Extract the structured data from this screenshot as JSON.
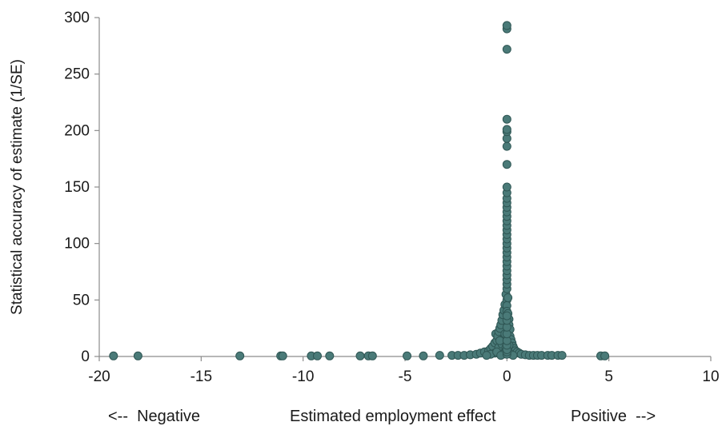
{
  "chart_data": {
    "type": "scatter",
    "title": "",
    "xlabel": "Estimated employment effect",
    "ylabel": "Statistical accuracy of estimate (1/SE)",
    "xlabel_left": "<--  Negative",
    "xlabel_right": "Positive  -->",
    "xlim": [
      -20,
      10
    ],
    "ylim": [
      0,
      300
    ],
    "xticks": [
      -20,
      -15,
      -10,
      -5,
      0,
      5,
      10
    ],
    "yticks": [
      0,
      50,
      100,
      150,
      200,
      250,
      300
    ],
    "xtick_labels": [
      "-20",
      "-15",
      "-10",
      "-5",
      "0",
      "5",
      "10"
    ],
    "ytick_labels": [
      "0",
      "50",
      "100",
      "150",
      "200",
      "250",
      "300"
    ],
    "grid": false,
    "legend": "none",
    "marker_color": "#4a7a78",
    "marker_edge": "#2f5654",
    "points": [
      [
        -19.3,
        0.5
      ],
      [
        -18.1,
        0.5
      ],
      [
        -13.1,
        0.5
      ],
      [
        -11.1,
        0.5
      ],
      [
        -11.0,
        0.5
      ],
      [
        -9.6,
        0.5
      ],
      [
        -9.3,
        0.5
      ],
      [
        -8.7,
        0.5
      ],
      [
        -7.2,
        0.5
      ],
      [
        -6.8,
        0.5
      ],
      [
        -6.6,
        0.5
      ],
      [
        -4.9,
        0.5
      ],
      [
        -4.1,
        0.5
      ],
      [
        -3.3,
        1.0
      ],
      [
        -2.7,
        1.0
      ],
      [
        -2.4,
        1.0
      ],
      [
        -2.1,
        1.0
      ],
      [
        -1.8,
        1.5
      ],
      [
        -1.5,
        2.0
      ],
      [
        -1.3,
        3.0
      ],
      [
        -1.1,
        4.0
      ],
      [
        -0.9,
        5.0
      ],
      [
        -0.8,
        7.0
      ],
      [
        -0.7,
        9.0
      ],
      [
        -0.6,
        12.0
      ],
      [
        -0.55,
        20.0
      ],
      [
        -0.5,
        14.0
      ],
      [
        -0.45,
        18.0
      ],
      [
        -0.4,
        22.0
      ],
      [
        -0.35,
        25.0
      ],
      [
        -0.3,
        28.0
      ],
      [
        -0.25,
        32.0
      ],
      [
        -0.2,
        37.0
      ],
      [
        -0.15,
        41.0
      ],
      [
        -0.1,
        46.0
      ],
      [
        -0.05,
        55.0
      ],
      [
        -0.3,
        6.0
      ],
      [
        -0.6,
        3.0
      ],
      [
        -0.2,
        15.0
      ],
      [
        -0.4,
        8.0
      ],
      [
        -0.1,
        20.0
      ],
      [
        -0.8,
        2.0
      ],
      [
        -1.0,
        1.0
      ],
      [
        -0.5,
        4.0
      ],
      [
        -0.25,
        11.0
      ],
      [
        0.0,
        60.0
      ],
      [
        0.0,
        64.0
      ],
      [
        0.0,
        68.0
      ],
      [
        0.0,
        72.0
      ],
      [
        0.0,
        76.0
      ],
      [
        0.0,
        80.0
      ],
      [
        0.0,
        84.0
      ],
      [
        0.0,
        88.0
      ],
      [
        0.0,
        92.0
      ],
      [
        0.0,
        96.0
      ],
      [
        0.0,
        100.0
      ],
      [
        0.0,
        104.0
      ],
      [
        0.0,
        108.0
      ],
      [
        0.0,
        112.0
      ],
      [
        0.0,
        116.0
      ],
      [
        0.0,
        120.0
      ],
      [
        0.0,
        124.0
      ],
      [
        0.0,
        128.0
      ],
      [
        0.0,
        132.0
      ],
      [
        0.0,
        136.0
      ],
      [
        0.0,
        140.0
      ],
      [
        0.0,
        145.0
      ],
      [
        0.0,
        150.0
      ],
      [
        0.0,
        170.0
      ],
      [
        0.0,
        186.0
      ],
      [
        0.0,
        193.0
      ],
      [
        0.0,
        199.0
      ],
      [
        0.0,
        201.0
      ],
      [
        0.0,
        210.0
      ],
      [
        0.0,
        272.0
      ],
      [
        0.0,
        290.0
      ],
      [
        0.0,
        293.0
      ],
      [
        0.0,
        50.0
      ],
      [
        0.0,
        45.0
      ],
      [
        0.0,
        40.0
      ],
      [
        0.05,
        52.0
      ],
      [
        0.05,
        38.0
      ],
      [
        0.1,
        33.0
      ],
      [
        0.1,
        28.0
      ],
      [
        0.15,
        24.0
      ],
      [
        0.15,
        18.0
      ],
      [
        0.2,
        15.0
      ],
      [
        0.25,
        12.0
      ],
      [
        0.3,
        9.0
      ],
      [
        0.35,
        7.0
      ],
      [
        0.4,
        5.0
      ],
      [
        0.5,
        4.0
      ],
      [
        0.6,
        3.0
      ],
      [
        0.7,
        2.0
      ],
      [
        0.9,
        1.5
      ],
      [
        1.1,
        1.0
      ],
      [
        1.3,
        1.0
      ],
      [
        1.5,
        1.0
      ],
      [
        1.7,
        1.0
      ],
      [
        2.0,
        1.0
      ],
      [
        2.2,
        1.0
      ],
      [
        2.5,
        1.0
      ],
      [
        2.7,
        1.0
      ],
      [
        4.6,
        0.5
      ],
      [
        4.8,
        0.5
      ],
      [
        -0.15,
        3.0
      ],
      [
        -0.05,
        8.0
      ],
      [
        0.05,
        6.0
      ],
      [
        0.1,
        10.0
      ],
      [
        -0.35,
        14.0
      ],
      [
        0.2,
        2.0
      ],
      [
        -0.2,
        2.0
      ],
      [
        0.3,
        1.0
      ],
      [
        -0.3,
        1.0
      ],
      [
        0.0,
        2.0
      ],
      [
        0.0,
        4.0
      ],
      [
        0.0,
        6.0
      ],
      [
        0.0,
        10.0
      ],
      [
        0.0,
        14.0
      ],
      [
        0.0,
        20.0
      ],
      [
        0.0,
        26.0
      ],
      [
        0.0,
        32.0
      ],
      [
        0.0,
        36.0
      ]
    ]
  }
}
